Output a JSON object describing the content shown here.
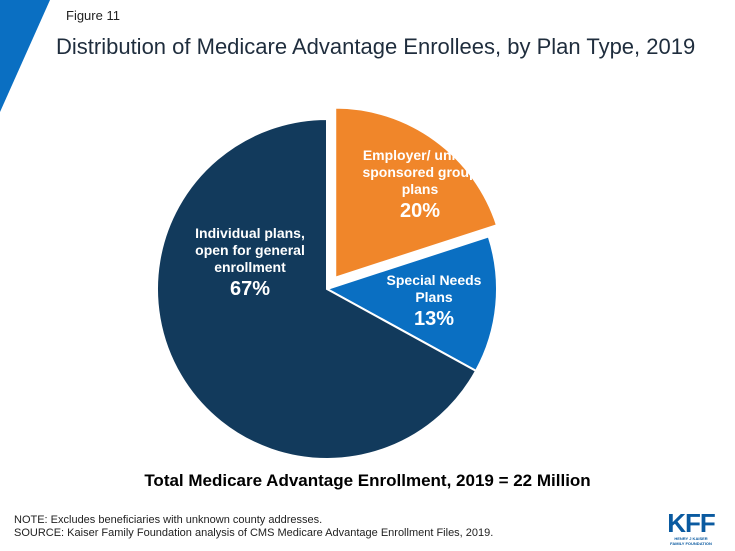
{
  "figure_label": "Figure 11",
  "title": "Distribution of Medicare Advantage Enrollees, by Plan Type, 2019",
  "total_text": "Total Medicare Advantage Enrollment, 2019 = 22 Million",
  "notes": {
    "note": "NOTE: Excludes beneficiaries with unknown county addresses.",
    "source": "SOURCE: Kaiser Family Foundation analysis of CMS Medicare Advantage Enrollment Files, 2019."
  },
  "logo": {
    "main": "KFF",
    "sub_line1": "HENRY J KAISER",
    "sub_line2": "FAMILY FOUNDATION"
  },
  "colors": {
    "accent_corner": "#0a6fc2"
  },
  "chart_data": {
    "type": "pie",
    "start_angle_deg": 0,
    "exploded_slice": "Employer/ union-sponsored group plans",
    "slices": [
      {
        "name": "Employer/ union-sponsored group plans",
        "label_lines": [
          "Employer/ union-",
          "sponsored group",
          "plans"
        ],
        "value": 20,
        "value_label": "20%",
        "color": "#f0862a"
      },
      {
        "name": "Special Needs Plans",
        "label_lines": [
          "Special Needs",
          "Plans"
        ],
        "value": 13,
        "value_label": "13%",
        "color": "#0a6fc2"
      },
      {
        "name": "Individual plans, open for general enrollment",
        "label_lines": [
          "Individual plans,",
          "open for general",
          "enrollment"
        ],
        "value": 67,
        "value_label": "67%",
        "color": "#123a5c"
      }
    ]
  }
}
